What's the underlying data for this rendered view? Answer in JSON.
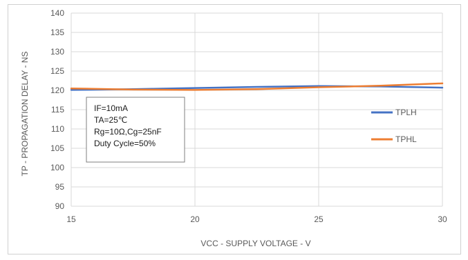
{
  "chart_data": {
    "type": "line",
    "title": "",
    "xlabel": "VCC - SUPPLY VOLTAGE - V",
    "ylabel": "TP - PROPAGATION DELAY - NS",
    "xlim": [
      15,
      30
    ],
    "ylim": [
      90,
      140
    ],
    "xticks": [
      15,
      20,
      25,
      30
    ],
    "yticks": [
      90,
      95,
      100,
      105,
      110,
      115,
      120,
      125,
      130,
      135,
      140
    ],
    "grid": "vertical and horizontal",
    "legend_position": "right",
    "series": [
      {
        "name": "TPLH",
        "color": "#4472C4",
        "x": [
          15,
          17.5,
          20,
          22.5,
          25,
          27.5,
          30
        ],
        "y": [
          120.1,
          120.3,
          120.6,
          120.9,
          121.1,
          121.0,
          120.7
        ]
      },
      {
        "name": "TPHL",
        "color": "#ED7D31",
        "x": [
          15,
          17.5,
          20,
          22.5,
          25,
          27.5,
          30
        ],
        "y": [
          120.5,
          120.2,
          120.1,
          120.3,
          120.8,
          121.2,
          121.8
        ]
      }
    ],
    "annotation_lines": [
      "IF=10mA",
      "TA=25℃",
      "Rg=10Ω,Cg=25nF",
      "Duty Cycle=50%"
    ]
  }
}
